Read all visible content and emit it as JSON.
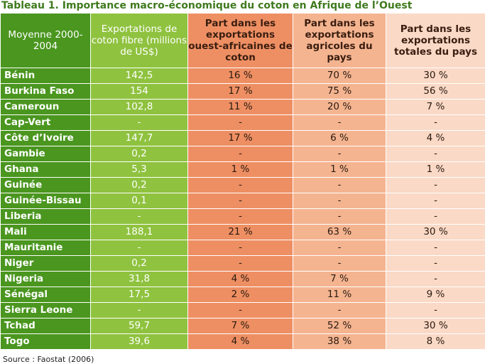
{
  "title": "Tableau 1. Importance macro-économique du coton en Afrique de l’Ouest",
  "headers": [
    "Moyenne 2000-2004",
    "Exportations de coton fibre (millions de US$)",
    "Part dans les exportations ouest-africaines de coton",
    "Part dans les exportations agricoles du pays",
    "Part dans les exportations totales du pays"
  ],
  "rows": [
    [
      "Bénin",
      "142,5",
      "16 %",
      "70 %",
      "30 %"
    ],
    [
      "Burkina Faso",
      "154",
      "17 %",
      "75 %",
      "56 %"
    ],
    [
      "Cameroun",
      "102,8",
      "11 %",
      "20 %",
      "7 %"
    ],
    [
      "Cap-Vert",
      "-",
      "-",
      "-",
      "-"
    ],
    [
      "Côte d’Ivoire",
      "147,7",
      "17 %",
      "6 %",
      "4 %"
    ],
    [
      "Gambie",
      "0,2",
      "-",
      "-",
      "-"
    ],
    [
      "Ghana",
      "5,3",
      "1 %",
      "1 %",
      "1 %"
    ],
    [
      "Guinée",
      "0,2",
      "-",
      "-",
      "-"
    ],
    [
      "Guinée-Bissau",
      "0,1",
      "-",
      "-",
      "-"
    ],
    [
      "Liberia",
      "-",
      "-",
      "-",
      "-"
    ],
    [
      "Mali",
      "188,1",
      "21 %",
      "63 %",
      "30 %"
    ],
    [
      "Mauritanie",
      "-",
      "-",
      "-",
      "-"
    ],
    [
      "Niger",
      "0,2",
      "-",
      "-",
      "-"
    ],
    [
      "Nigeria",
      "31,8",
      "4 %",
      "7 %",
      "-"
    ],
    [
      "Sénégal",
      "17,5",
      "2 %",
      "11 %",
      "9 %"
    ],
    [
      "Sierra Leone",
      "-",
      "-",
      "-",
      "-"
    ],
    [
      "Tchad",
      "59,7",
      "7 %",
      "52 %",
      "30 %"
    ],
    [
      "Togo",
      "39,6",
      "4 %",
      "38 %",
      "8 %"
    ]
  ],
  "source": "Source : Faostat (2006)",
  "colors": {
    "title": "#3f7a1e",
    "country_col": "#4a961f",
    "export_col": "#8fc23f",
    "share_wa_col": "#ee8f63",
    "share_agri_col": "#f4b490",
    "share_total_col": "#fad9c6"
  }
}
